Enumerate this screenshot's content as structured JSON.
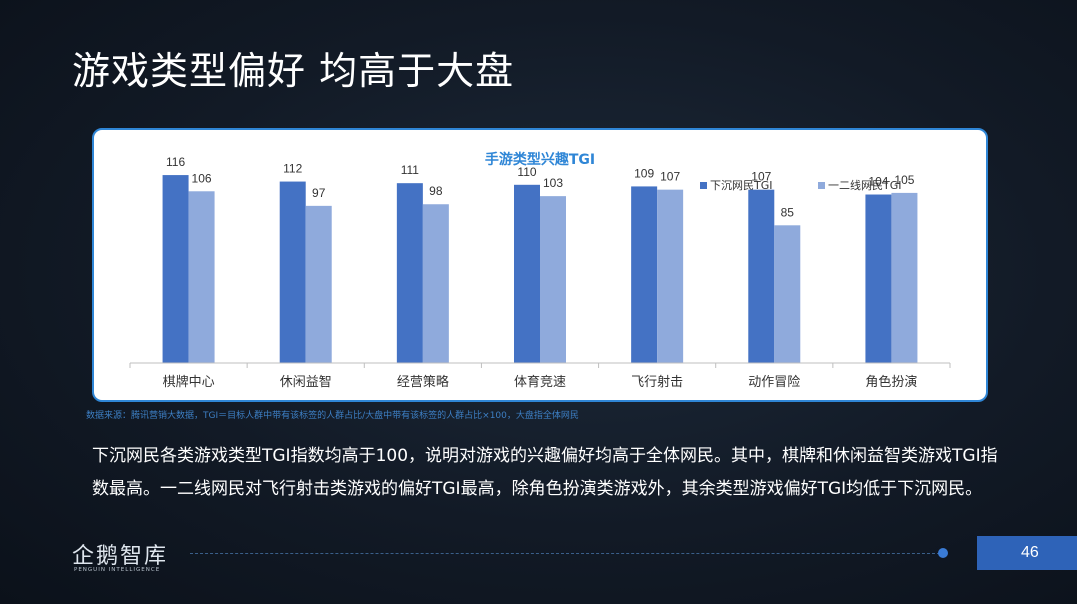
{
  "page": {
    "title": "游戏类型偏好  均高于大盘",
    "source": "数据来源：腾讯营销大数据，TGI＝目标人群中带有该标签的人群占比/大盘中带有该标签的人群占比×100，大盘指全体网民",
    "summary": "下沉网民各类游戏类型TGI指数均高于100，说明对游戏的兴趣偏好均高于全体网民。其中，棋牌和休闲益智类游戏TGI指数最高。一二线网民对飞行射击类游戏的偏好TGI最高，除角色扮演类游戏外，其余类型游戏偏好TGI均低于下沉网民。",
    "logo_main": "企鹅智库",
    "logo_sub": "PENGUIN INTELLIGENCE",
    "page_number": "46"
  },
  "colors": {
    "series1": "#4472c4",
    "series2": "#8faadc",
    "title": "#2f86d6",
    "accent_border": "#2f86d6",
    "page_box": "#2e63b8"
  },
  "chart_data": {
    "type": "bar",
    "title": "手游类型兴趣TGI",
    "categories": [
      "棋牌中心",
      "休闲益智",
      "经营策略",
      "体育竞速",
      "飞行射击",
      "动作冒险",
      "角色扮演"
    ],
    "series": [
      {
        "name": "下沉网民TGI",
        "values": [
          116,
          112,
          111,
          110,
          109,
          107,
          104
        ]
      },
      {
        "name": "一二线网民TGI",
        "values": [
          106,
          97,
          98,
          103,
          107,
          85,
          105
        ]
      }
    ],
    "ylim": [
      0,
      130
    ],
    "legend_position": "top-right",
    "grid": false
  }
}
